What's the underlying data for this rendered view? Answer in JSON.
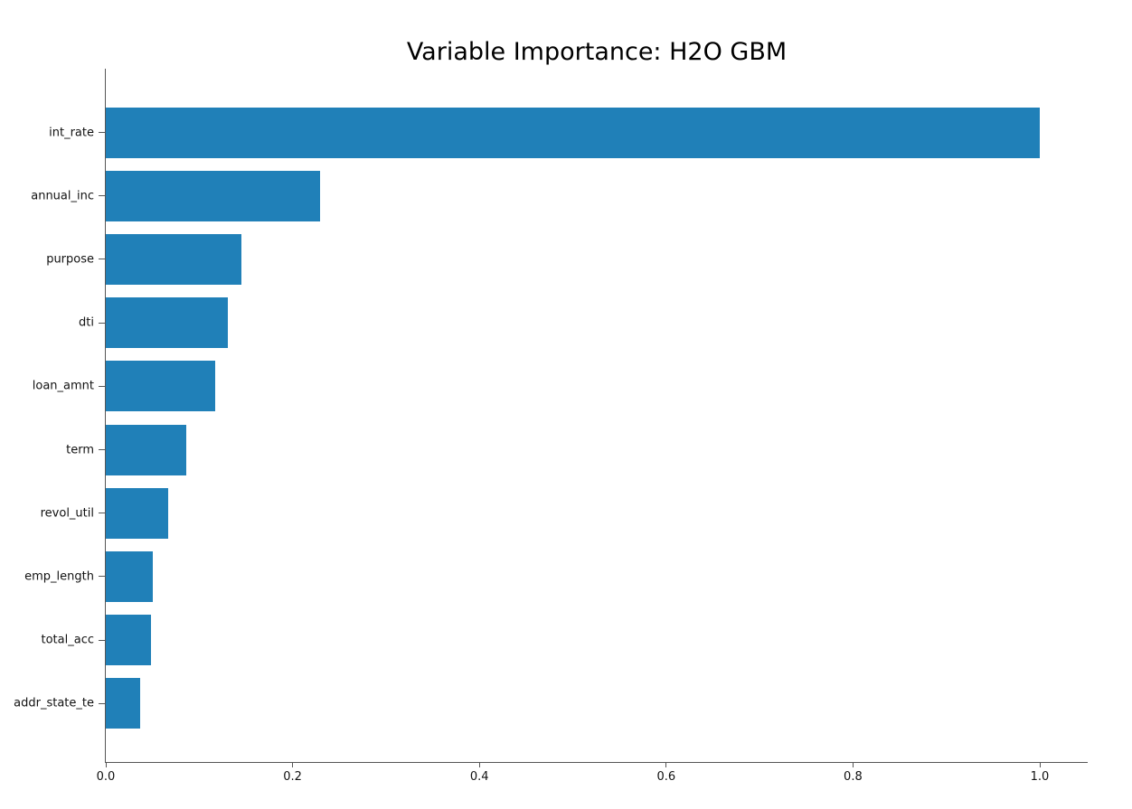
{
  "chart_data": {
    "type": "bar",
    "orientation": "horizontal",
    "title": "Variable Importance: H2O GBM",
    "xlabel": "",
    "ylabel": "",
    "categories": [
      "int_rate",
      "annual_inc",
      "purpose",
      "dti",
      "loan_amnt",
      "term",
      "revol_util",
      "emp_length",
      "total_acc",
      "addr_state_te"
    ],
    "values": [
      1.0,
      0.229,
      0.145,
      0.131,
      0.117,
      0.086,
      0.067,
      0.05,
      0.048,
      0.037
    ],
    "xticks": [
      "0.0",
      "0.2",
      "0.4",
      "0.6",
      "0.8",
      "1.0"
    ],
    "xtick_values": [
      0.0,
      0.2,
      0.4,
      0.6,
      0.8,
      1.0
    ],
    "xlim": [
      0.0,
      1.051
    ],
    "bar_color": "#2080b8",
    "grid": false,
    "legend": false
  }
}
